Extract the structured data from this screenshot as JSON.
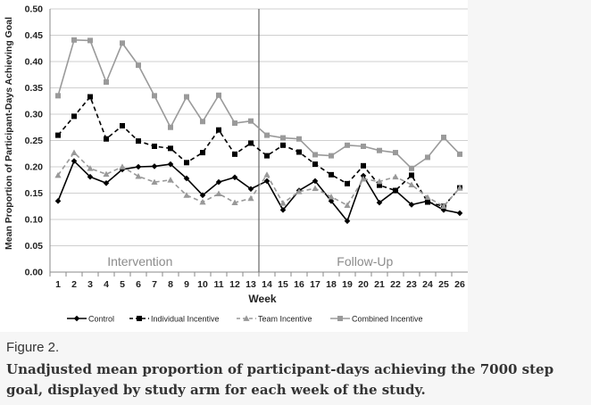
{
  "figure_label": "Figure 2.",
  "caption": "Unadjusted mean proportion of participant-days achieving the 7000 step goal, displayed by study arm for each week of the study.",
  "chart_data": {
    "type": "line",
    "title": "",
    "xlabel": "Week",
    "ylabel": "Mean Proportion of Participant-Days Achieving Goal",
    "x": [
      1,
      2,
      3,
      4,
      5,
      6,
      7,
      8,
      9,
      10,
      11,
      12,
      13,
      14,
      15,
      16,
      17,
      18,
      19,
      20,
      21,
      22,
      23,
      24,
      25,
      26
    ],
    "ylim": [
      0,
      0.5
    ],
    "yticks": [
      "0.00",
      "0.05",
      "0.10",
      "0.15",
      "0.20",
      "0.25",
      "0.30",
      "0.35",
      "0.40",
      "0.45",
      "0.50"
    ],
    "grid": "horizontal",
    "legend_position": "bottom",
    "phase_divider_after_week": 13.5,
    "phase_labels": [
      "Intervention",
      "Follow-Up"
    ],
    "series": [
      {
        "name": "Control",
        "color": "#000000",
        "dash": "solid",
        "marker": "diamond",
        "values": [
          0.135,
          0.211,
          0.181,
          0.169,
          0.195,
          0.2,
          0.201,
          0.205,
          0.178,
          0.146,
          0.171,
          0.18,
          0.158,
          0.173,
          0.118,
          0.155,
          0.173,
          0.135,
          0.097,
          0.183,
          0.132,
          0.155,
          0.128,
          0.135,
          0.118,
          0.112
        ]
      },
      {
        "name": "Individual Incentive",
        "color": "#000000",
        "dash": "dashed",
        "marker": "square",
        "values": [
          0.26,
          0.296,
          0.333,
          0.253,
          0.278,
          0.249,
          0.239,
          0.235,
          0.208,
          0.227,
          0.27,
          0.224,
          0.245,
          0.221,
          0.241,
          0.228,
          0.205,
          0.185,
          0.168,
          0.202,
          0.165,
          0.155,
          0.184,
          0.133,
          0.125,
          0.16
        ]
      },
      {
        "name": "Team Incentive",
        "color": "#999999",
        "dash": "dashed",
        "marker": "triangle",
        "values": [
          0.184,
          0.227,
          0.197,
          0.186,
          0.2,
          0.182,
          0.171,
          0.175,
          0.146,
          0.133,
          0.149,
          0.132,
          0.14,
          0.185,
          0.131,
          0.153,
          0.159,
          0.143,
          0.127,
          0.177,
          0.172,
          0.181,
          0.166,
          0.142,
          0.125,
          0.16
        ]
      },
      {
        "name": "Combined Incentive",
        "color": "#9a9a9a",
        "dash": "solid",
        "marker": "square",
        "values": [
          0.335,
          0.441,
          0.44,
          0.361,
          0.435,
          0.393,
          0.335,
          0.275,
          0.333,
          0.286,
          0.336,
          0.283,
          0.287,
          0.26,
          0.255,
          0.253,
          0.223,
          0.221,
          0.241,
          0.239,
          0.231,
          0.227,
          0.197,
          0.218,
          0.256,
          0.224
        ]
      }
    ]
  }
}
